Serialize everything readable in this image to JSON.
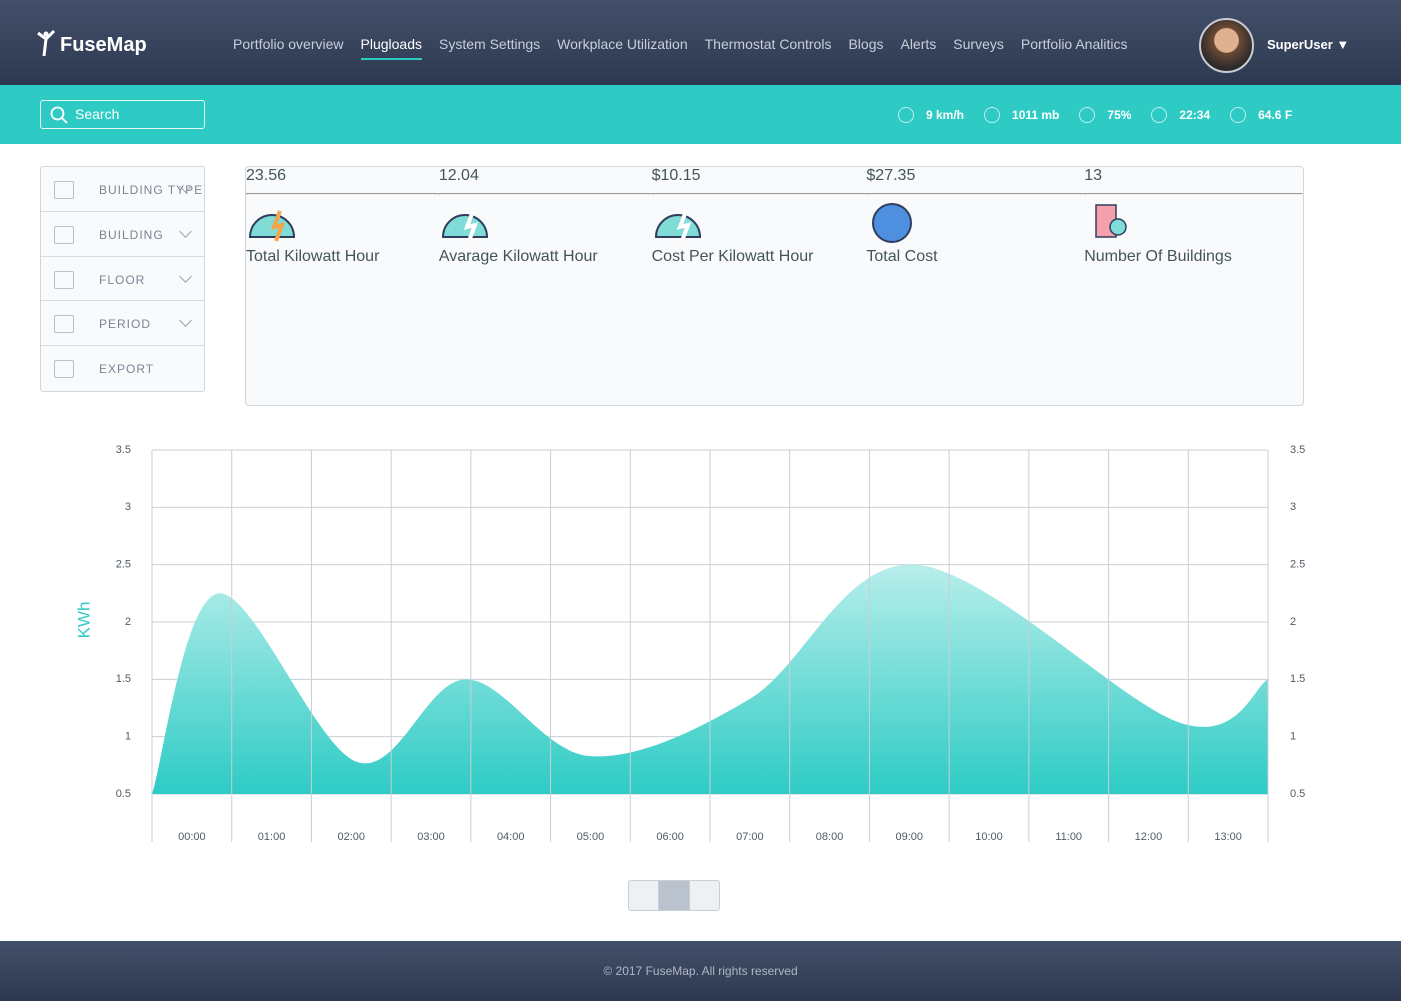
{
  "header": {
    "logo": "FuseMap",
    "nav": [
      "Portfolio overview",
      "Plugloads",
      "System Settings",
      "Workplace Utilization",
      "Thermostat Controls",
      "Blogs",
      "Alerts",
      "Surveys",
      "Portfolio Analitics"
    ],
    "user": "SuperUser"
  },
  "search_placeholder": "Search",
  "weather": [
    "9 km/h",
    "1011 mb",
    "75%",
    "22:34",
    "64.6 F"
  ],
  "filters": [
    "BUILDING TYPE",
    "BUILDING",
    "FLOOR",
    "PERIOD",
    "EXPORT"
  ],
  "stats": [
    {
      "value": "23.56",
      "label": "Total Kilowatt Hour"
    },
    {
      "value": "12.04",
      "label": "Avarage Kilowatt Hour"
    },
    {
      "value": "$10.15",
      "label": "Cost Per Kilowatt Hour"
    },
    {
      "value": "$27.35",
      "label": "Total Cost"
    },
    {
      "value": "13",
      "label": "Number Of Buildings"
    }
  ],
  "chart_data": {
    "type": "area",
    "y_label": "KWh",
    "color": "#2ecbc5",
    "x": [
      -0.5,
      0.33,
      2.07,
      3.43,
      5,
      7,
      9.07,
      12.4,
      13.5
    ],
    "values": [
      0.5,
      2.25,
      0.78,
      1.5,
      0.83,
      1.33,
      2.5,
      1.12,
      1.5
    ],
    "xlim": [
      -0.5,
      13.5
    ],
    "xticks": [
      {
        "value": 0,
        "label": "00:00"
      },
      {
        "value": 1,
        "label": "01:00"
      },
      {
        "value": 2,
        "label": "02:00"
      },
      {
        "value": 3,
        "label": "03:00"
      },
      {
        "value": 4,
        "label": "04:00"
      },
      {
        "value": 5,
        "label": "05:00"
      },
      {
        "value": 6,
        "label": "06:00"
      },
      {
        "value": 7,
        "label": "07:00"
      },
      {
        "value": 8,
        "label": "08:00"
      },
      {
        "value": 9,
        "label": "09:00"
      },
      {
        "value": 10,
        "label": "10:00"
      },
      {
        "value": 11,
        "label": "11:00"
      },
      {
        "value": 12,
        "label": "12:00"
      },
      {
        "value": 13,
        "label": "13:00"
      }
    ],
    "ylim": [
      0.5,
      3.5
    ],
    "yticks": [
      0.5,
      1,
      1.5,
      2,
      2.5,
      3,
      3.5
    ],
    "grid": true
  },
  "footer": "© 2017 FuseMap. All rights reserved"
}
